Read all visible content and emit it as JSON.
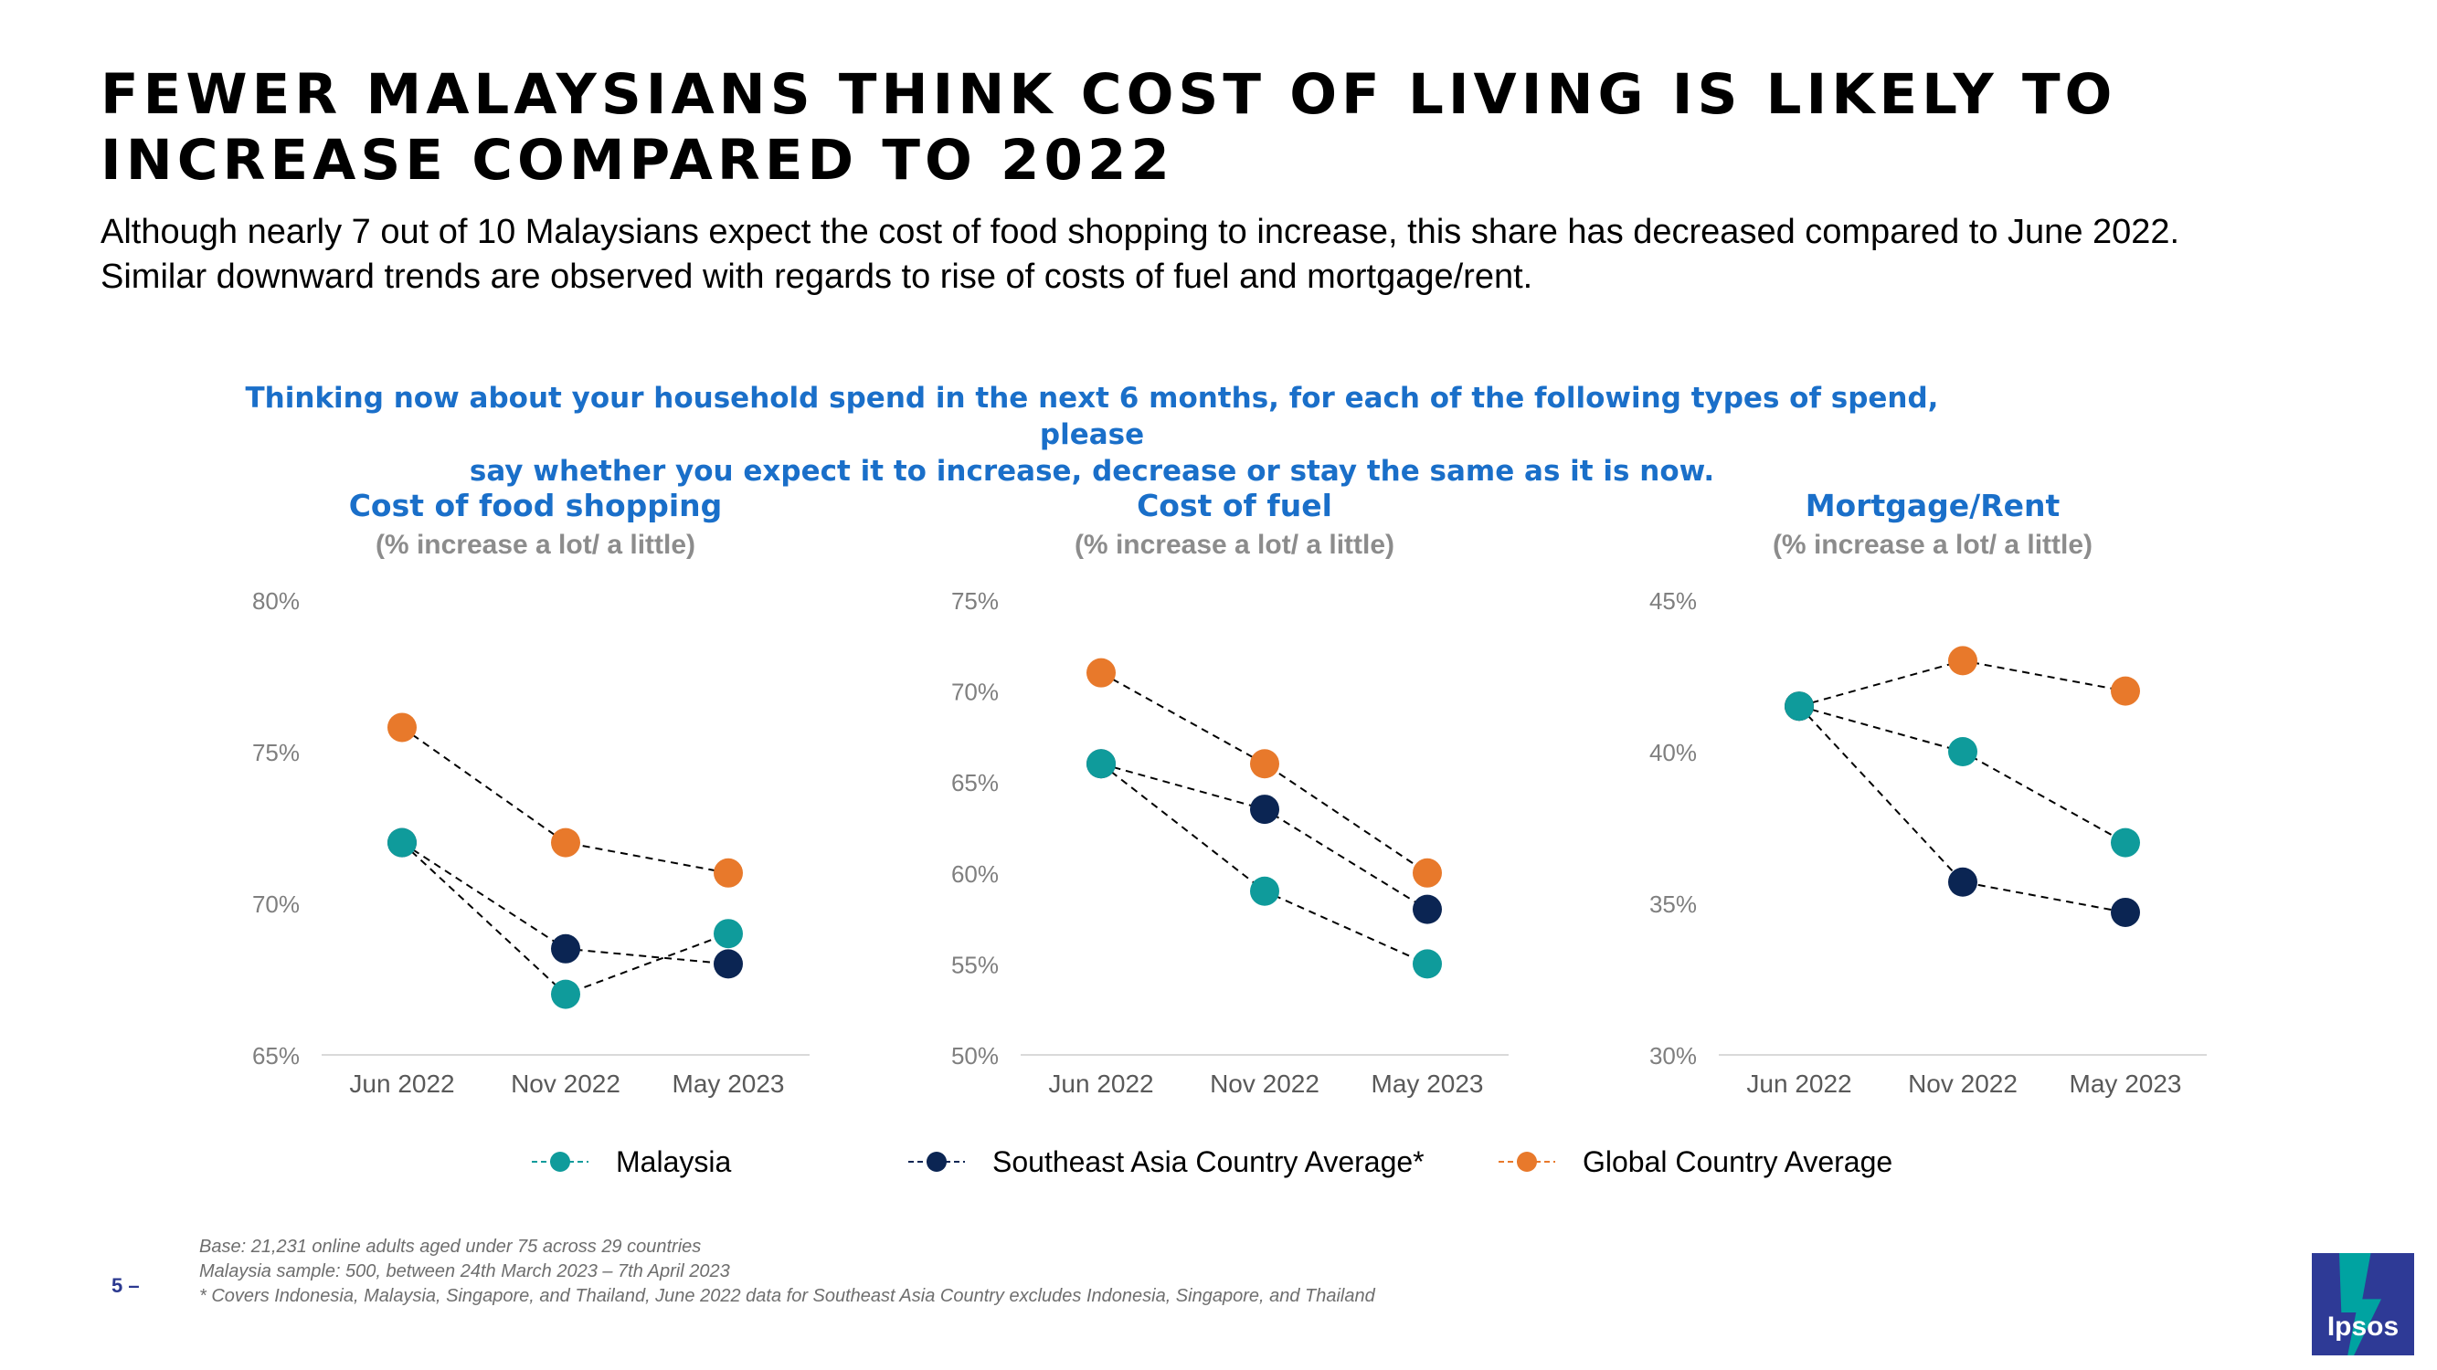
{
  "title": "FEWER MALAYSIANS THINK COST OF LIVING IS LIKELY TO INCREASE COMPARED TO 2022",
  "subtitle_lines": [
    "Although nearly 7 out of 10 Malaysians expect the cost of food shopping to increase, this share has decreased compared to June 2022.",
    "Similar downward trends are observed with regards to rise of costs of fuel and mortgage/rent."
  ],
  "question_lines": [
    "Thinking now about your household spend in the next 6 months, for each of the following types of spend, please",
    "say whether you expect it to increase, decrease or stay the same as it is now."
  ],
  "colors": {
    "malaysia": "#0F9B9B",
    "sea": "#0B2553",
    "global": "#E8792B",
    "heading_blue": "#1A6FC9",
    "axis_text": "#7F7F7F",
    "axis_line": "#D9D9D9"
  },
  "legend": [
    {
      "key": "malaysia",
      "label": "Malaysia"
    },
    {
      "key": "sea",
      "label": "Southeast Asia Country Average*"
    },
    {
      "key": "global",
      "label": "Global Country Average"
    }
  ],
  "chart_data": [
    {
      "type": "line",
      "title": "Cost of food shopping",
      "subtitle": "(% increase a lot/ a little)",
      "categories": [
        "Jun 2022",
        "Nov 2022",
        "May 2023"
      ],
      "ylim": [
        65,
        80
      ],
      "yticks": [
        65,
        70,
        75,
        80
      ],
      "ytick_labels": [
        "65%",
        "70%",
        "75%",
        "80%"
      ],
      "series": [
        {
          "key": "malaysia",
          "name": "Malaysia",
          "values": [
            72,
            67,
            69
          ]
        },
        {
          "key": "sea",
          "name": "Southeast Asia Country Average*",
          "values": [
            72,
            68.5,
            68
          ]
        },
        {
          "key": "global",
          "name": "Global Country Average",
          "values": [
            75.8,
            72,
            71
          ]
        }
      ]
    },
    {
      "type": "line",
      "title": "Cost of fuel",
      "subtitle": "(% increase a lot/ a little)",
      "categories": [
        "Jun 2022",
        "Nov 2022",
        "May 2023"
      ],
      "ylim": [
        50,
        75
      ],
      "yticks": [
        50,
        55,
        60,
        65,
        70,
        75
      ],
      "ytick_labels": [
        "50%",
        "55%",
        "60%",
        "65%",
        "70%",
        "75%"
      ],
      "series": [
        {
          "key": "malaysia",
          "name": "Malaysia",
          "values": [
            66,
            59,
            55
          ]
        },
        {
          "key": "sea",
          "name": "Southeast Asia Country Average*",
          "values": [
            66,
            63.5,
            58
          ]
        },
        {
          "key": "global",
          "name": "Global Country Average",
          "values": [
            71,
            66,
            60
          ]
        }
      ]
    },
    {
      "type": "line",
      "title": "Mortgage/Rent",
      "subtitle": "(% increase a lot/ a little)",
      "categories": [
        "Jun 2022",
        "Nov 2022",
        "May 2023"
      ],
      "ylim": [
        30,
        45
      ],
      "yticks": [
        30,
        35,
        40,
        45
      ],
      "ytick_labels": [
        "30%",
        "35%",
        "40%",
        "45%"
      ],
      "series": [
        {
          "key": "malaysia",
          "name": "Malaysia",
          "values": [
            41.5,
            40,
            37
          ]
        },
        {
          "key": "sea",
          "name": "Southeast Asia Country Average*",
          "values": [
            41.5,
            35.7,
            34.7
          ]
        },
        {
          "key": "global",
          "name": "Global Country Average",
          "values": [
            41.5,
            43,
            42
          ]
        }
      ]
    }
  ],
  "footnotes": [
    "Base: 21,231 online adults aged under 75 across 29 countries",
    "Malaysia sample: 500, between 24th March 2023 – 7th April 2023",
    "* Covers Indonesia, Malaysia, Singapore, and Thailand, June 2022 data for Southeast Asia Country excludes Indonesia, Singapore, and Thailand"
  ],
  "page_number": "5 –",
  "logo_text": "Ipsos"
}
